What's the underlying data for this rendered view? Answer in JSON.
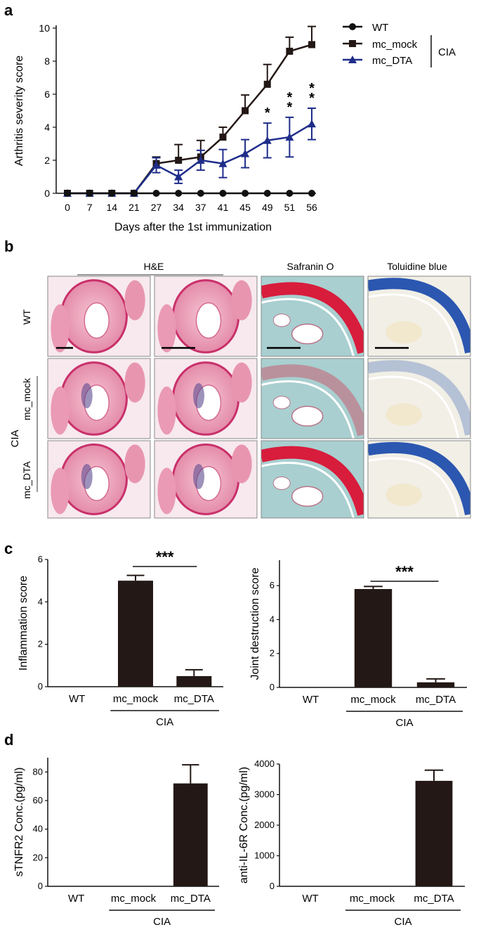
{
  "panel_labels": {
    "a": "a",
    "b": "b",
    "c": "c",
    "d": "d"
  },
  "colors": {
    "wt": "#111111",
    "mock": "#231815",
    "dta": "#1f2d8a",
    "bar": "#231815",
    "he": "#e58aa6",
    "he_dark": "#c9306a",
    "safranin": "#d81c3c",
    "safranin_bg": "#a9cfd0",
    "toluidine": "#2b57b0",
    "toluidine_bg": "#f1efe6"
  },
  "chart_data": [
    {
      "id": "a",
      "type": "line",
      "ylabel": "Arthritis severity score",
      "xlabel": "Days after the 1st immunization",
      "ylim": [
        0,
        10
      ],
      "yticks": [
        "0",
        "2",
        "4",
        "6",
        "8",
        "10"
      ],
      "x": [
        "0",
        "7",
        "14",
        "21",
        "27",
        "34",
        "37",
        "41",
        "45",
        "49",
        "51",
        "56"
      ],
      "series": [
        {
          "name": "WT",
          "marker": "circle",
          "values": [
            0,
            0,
            0,
            0,
            0,
            0,
            0,
            0,
            0,
            0,
            0,
            0
          ],
          "err": [
            0,
            0,
            0,
            0,
            0,
            0,
            0,
            0,
            0,
            0,
            0,
            0
          ]
        },
        {
          "name": "mc_mock",
          "marker": "square",
          "values": [
            0,
            0,
            0,
            0,
            1.8,
            2.0,
            2.2,
            3.4,
            5.0,
            6.6,
            8.6,
            9.0
          ],
          "err": [
            0,
            0,
            0,
            0,
            0.4,
            0.95,
            1.0,
            0.6,
            0.95,
            1.2,
            0.85,
            1.1
          ]
        },
        {
          "name": "mc_DTA",
          "marker": "triangle",
          "values": [
            0,
            0,
            0,
            0,
            1.7,
            1.0,
            2.0,
            1.8,
            2.4,
            3.2,
            3.4,
            4.2
          ],
          "err": [
            0,
            0,
            0,
            0,
            0.45,
            0.4,
            0.6,
            0.85,
            0.85,
            1.05,
            1.2,
            0.95
          ]
        }
      ],
      "legend_group": "CIA",
      "annotations": [
        {
          "x": "49",
          "text": "*"
        },
        {
          "x": "51",
          "text": "**"
        },
        {
          "x": "56",
          "text": "**"
        }
      ]
    },
    {
      "id": "c1",
      "type": "bar",
      "ylabel": "Inflammation score",
      "categories": [
        "WT",
        "mc_mock",
        "mc_DTA"
      ],
      "values": [
        0,
        5.0,
        0.5
      ],
      "err": [
        0,
        0.25,
        0.3
      ],
      "ylim": [
        0,
        6
      ],
      "yticks": [
        "0",
        "2",
        "4",
        "6"
      ],
      "group_label": "CIA",
      "significance": "***"
    },
    {
      "id": "c2",
      "type": "bar",
      "ylabel": "Joint destruction score",
      "categories": [
        "WT",
        "mc_mock",
        "mc_DTA"
      ],
      "values": [
        0,
        5.8,
        0.3
      ],
      "err": [
        0,
        0.15,
        0.2
      ],
      "ylim": [
        0,
        7.5
      ],
      "yticks": [
        "0",
        "2",
        "4",
        "6"
      ],
      "group_label": "CIA",
      "significance": "***"
    },
    {
      "id": "d1",
      "type": "bar",
      "ylabel": "sTNFR2 Conc.(pg/ml)",
      "categories": [
        "WT",
        "mc_mock",
        "mc_DTA"
      ],
      "values": [
        0,
        0,
        72
      ],
      "err": [
        0,
        0,
        13
      ],
      "ylim": [
        0,
        90
      ],
      "yticks": [
        "0",
        "20",
        "40",
        "60",
        "80"
      ],
      "group_label": "CIA"
    },
    {
      "id": "d2",
      "type": "bar",
      "ylabel": "anti-IL-6R Conc.(pg/ml)",
      "categories": [
        "WT",
        "mc_mock",
        "mc_DTA"
      ],
      "values": [
        0,
        0,
        3450
      ],
      "err": [
        0,
        0,
        350
      ],
      "ylim": [
        0,
        4000
      ],
      "yticks": [
        "0",
        "1000",
        "2000",
        "3000",
        "4000"
      ],
      "group_label": "CIA"
    }
  ],
  "panel_b": {
    "column_headers": [
      "H&E",
      "Safranin O",
      "Toluidine blue"
    ],
    "row_labels": [
      "WT",
      "mc_mock",
      "mc_DTA"
    ],
    "group_label": "CIA"
  }
}
